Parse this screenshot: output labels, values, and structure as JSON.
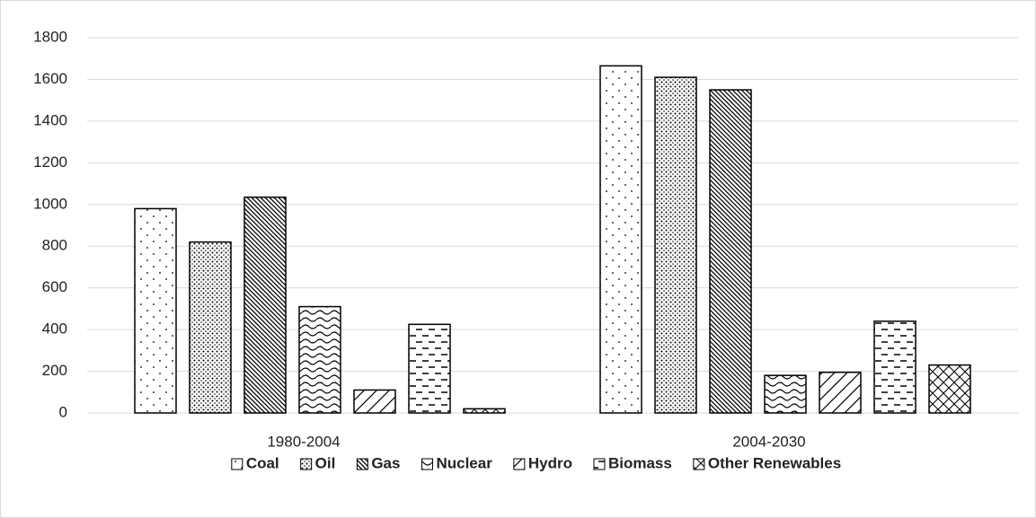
{
  "chart_data": {
    "type": "bar",
    "categories": [
      "1980-2004",
      "2004-2030"
    ],
    "series": [
      {
        "name": "Coal",
        "pattern": "sparse-dots",
        "values": [
          980,
          1665
        ]
      },
      {
        "name": "Oil",
        "pattern": "dense-dots",
        "values": [
          820,
          1610
        ]
      },
      {
        "name": "Gas",
        "pattern": "diagonal-lines",
        "values": [
          1035,
          1550
        ]
      },
      {
        "name": "Nuclear",
        "pattern": "waves",
        "values": [
          510,
          180
        ]
      },
      {
        "name": "Hydro",
        "pattern": "wide-diagonal",
        "values": [
          110,
          195
        ]
      },
      {
        "name": "Biomass",
        "pattern": "dashes",
        "values": [
          425,
          440
        ]
      },
      {
        "name": "Other Renewables",
        "pattern": "crosshatch",
        "values": [
          20,
          230
        ]
      }
    ],
    "ylim": [
      0,
      1800
    ],
    "yticks": [
      0,
      200,
      400,
      600,
      800,
      1000,
      1200,
      1400,
      1600,
      1800
    ],
    "grid": true,
    "legend": "bottom"
  }
}
